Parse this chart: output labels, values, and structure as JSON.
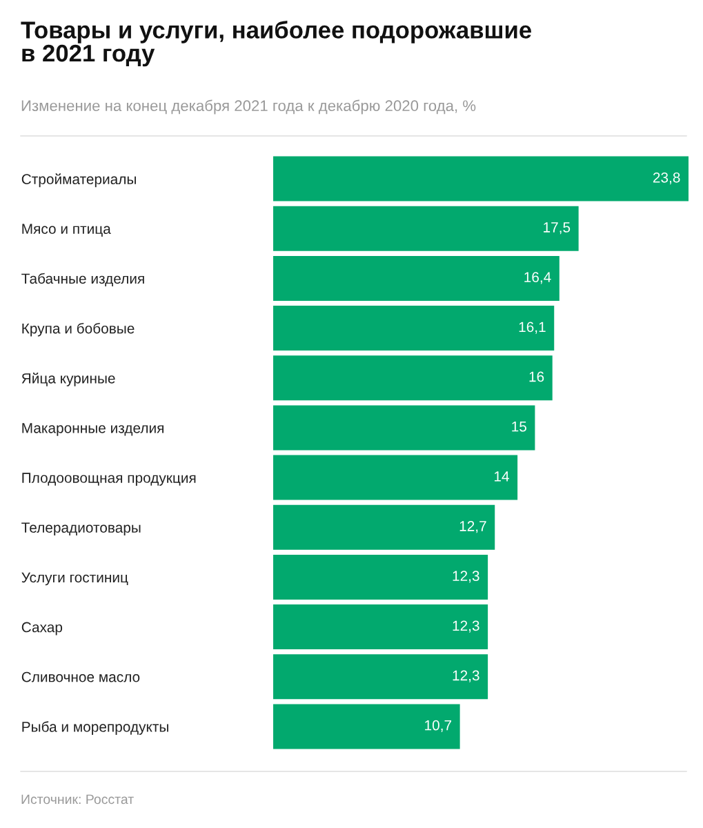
{
  "chart_data": {
    "type": "bar",
    "orientation": "horizontal",
    "title": "Товары и услуги, наиболее подорожавшие\nв 2021 году",
    "subtitle": "Изменение на конец декабря 2021 года к декабрю 2020 года, %",
    "categories": [
      "Стройматериалы",
      "Мясо и птица",
      "Табачные изделия",
      "Крупа и бобовые",
      "Яйца куриные",
      "Макаронные изделия",
      "Плодоовощная продукция",
      "Телерадиотовары",
      "Услуги гостиниц",
      "Сахар",
      "Сливочное масло",
      "Рыба и морепродукты"
    ],
    "values": [
      23.8,
      17.5,
      16.4,
      16.1,
      16,
      15,
      14,
      12.7,
      12.3,
      12.3,
      12.3,
      10.7
    ],
    "value_labels": [
      "23,8",
      "17,5",
      "16,4",
      "16,1",
      "16",
      "15",
      "14",
      "12,7",
      "12,3",
      "12,3",
      "12,3",
      "10,7"
    ],
    "color": "#02a96e",
    "annotations": [
      "Источник: Росстат"
    ],
    "grid": false,
    "legend": false,
    "tick_labels": "y"
  }
}
